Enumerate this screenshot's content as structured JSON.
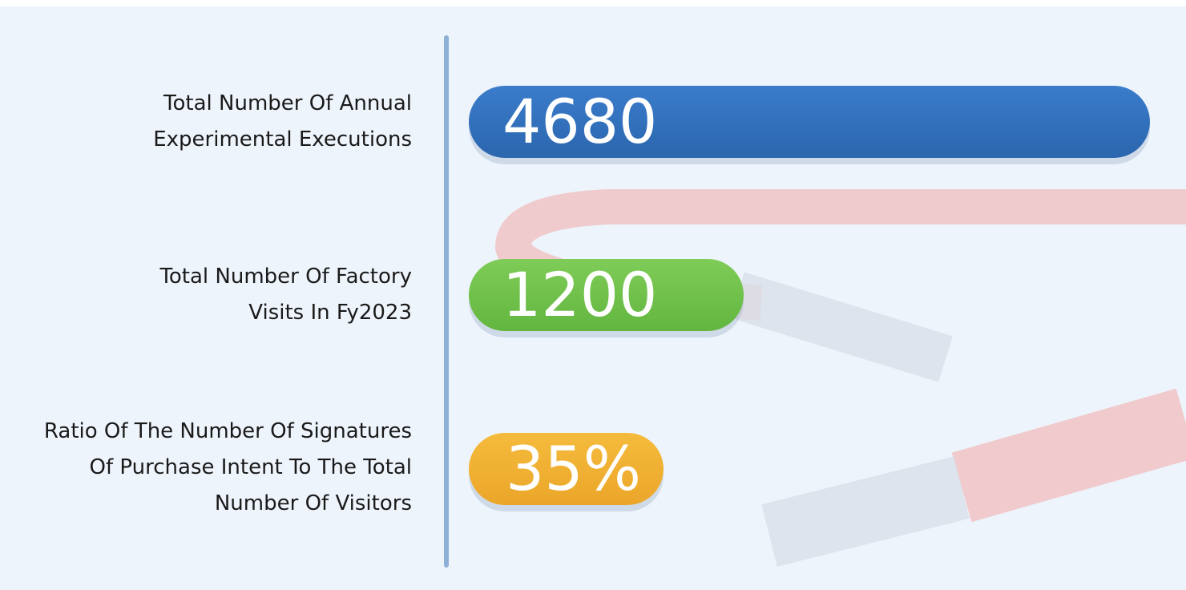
{
  "stats": [
    {
      "label_lines": [
        "Total Number Of Annual",
        "Experimental Executions"
      ],
      "value": "4680"
    },
    {
      "label_lines": [
        "Total Number Of Factory",
        "Visits In Fy2023"
      ],
      "value": "1200"
    },
    {
      "label_lines": [
        "Ratio Of The Number Of Signatures",
        "Of Purchase Intent To The Total",
        "Number Of Visitors"
      ],
      "value": "35%"
    }
  ]
}
